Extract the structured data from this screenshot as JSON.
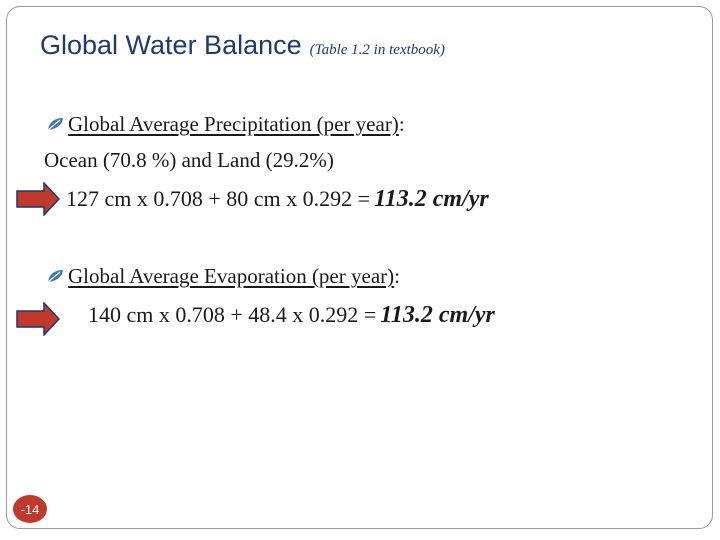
{
  "slide": {
    "title": "Global Water Balance",
    "title_note": "(Table 1.2 in textbook)",
    "precip_heading": "Global Average Precipitation (per year)",
    "precip_colon": ":",
    "ocean_land": "Ocean (70.8 %)  and  Land  (29.2%)",
    "precip_equation": "127 cm x 0.708  +  80 cm x 0.292 =",
    "precip_result": "113.2 cm/yr",
    "evap_heading": "Global Average Evaporation (per year)",
    "evap_colon": ":",
    "evap_equation": "140 cm x 0.708  + 48.4 x 0.292  =",
    "evap_result": "113.2 cm/yr",
    "page_number": "-14"
  },
  "icons": {
    "bullet": "leaf-bullet-icon",
    "arrow": "right-arrow-icon"
  },
  "colors": {
    "title": "#1f3a6d",
    "arrow_fill": "#c0392b",
    "arrow_stroke": "#1f3a6d",
    "bullet": "#3a7bbf",
    "page_badge": "#c0392b"
  }
}
